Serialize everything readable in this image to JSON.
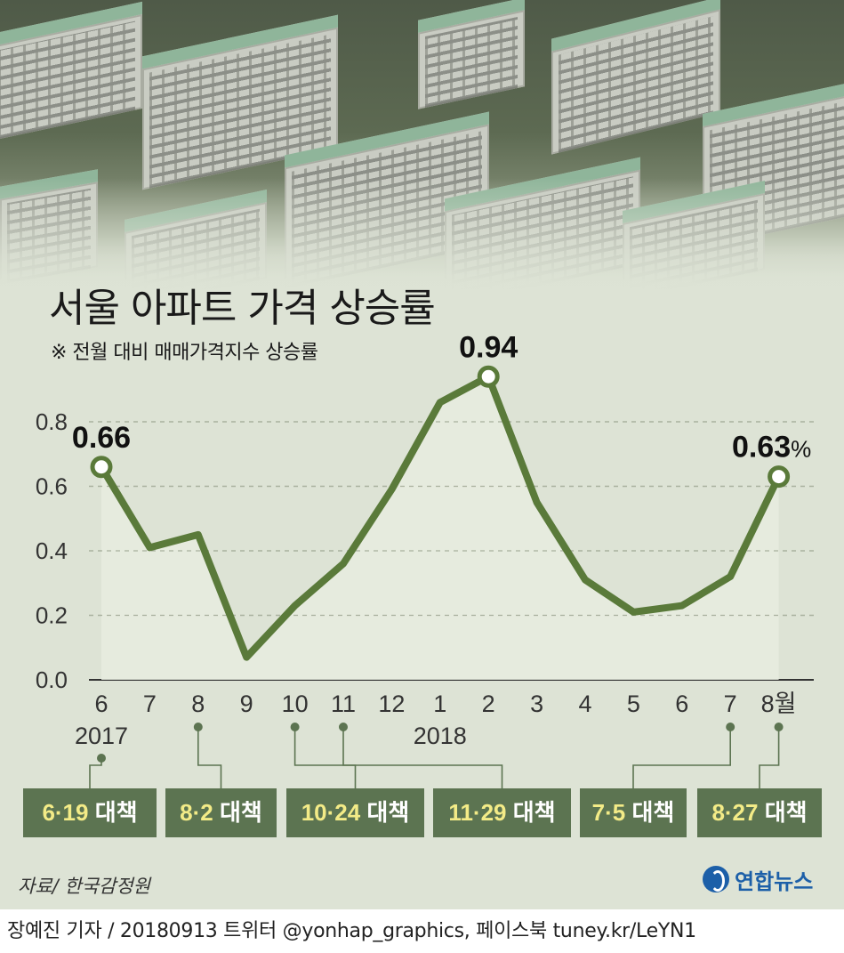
{
  "title": "서울 아파트 가격 상승률",
  "subtitle": "※ 전월 대비 매매가격지수 상승률",
  "chart_data": {
    "type": "line",
    "x": [
      "6",
      "7",
      "8",
      "9",
      "10",
      "11",
      "12",
      "1",
      "2",
      "3",
      "4",
      "5",
      "6",
      "7",
      "8월"
    ],
    "year_labels": [
      {
        "at_index": 0,
        "label": "2017"
      },
      {
        "at_index": 7,
        "label": "2018"
      }
    ],
    "values": [
      0.66,
      0.41,
      0.45,
      0.07,
      0.23,
      0.36,
      0.59,
      0.86,
      0.94,
      0.55,
      0.31,
      0.21,
      0.23,
      0.32,
      0.63
    ],
    "ylim": [
      0,
      0.8
    ],
    "yticks": [
      "0.0",
      "0.2",
      "0.4",
      "0.6",
      "0.8"
    ],
    "highlighted_points": [
      {
        "index": 0,
        "label": "0.66"
      },
      {
        "index": 8,
        "label": "0.94"
      },
      {
        "index": 14,
        "label": "0.63",
        "unit": "%"
      }
    ],
    "grid": true,
    "line_color": "#5a7a3a"
  },
  "policies": [
    {
      "date": "6·19",
      "suffix": " 대책",
      "x_index": 0
    },
    {
      "date": "8·2",
      "suffix": " 대책",
      "x_index": 2
    },
    {
      "date": "10·24",
      "suffix": " 대책",
      "x_index": 4
    },
    {
      "date": "11·29",
      "suffix": " 대책",
      "x_index": 5
    },
    {
      "date": "7·5",
      "suffix": " 대책",
      "x_index": 13
    },
    {
      "date": "8·27",
      "suffix": " 대책",
      "x_index": 14
    }
  ],
  "source": "자료/ 한국감정원",
  "logo_text": "연합뉴스",
  "footer": "장예진 기자 / 20180913 트위터 @yonhap_graphics, 페이스북 tuney.kr/LeYN1",
  "colors": {
    "panel": "#dde3d5",
    "line": "#5a7a3a",
    "policy_box": "#5c7451",
    "policy_date": "#f3eb87"
  }
}
